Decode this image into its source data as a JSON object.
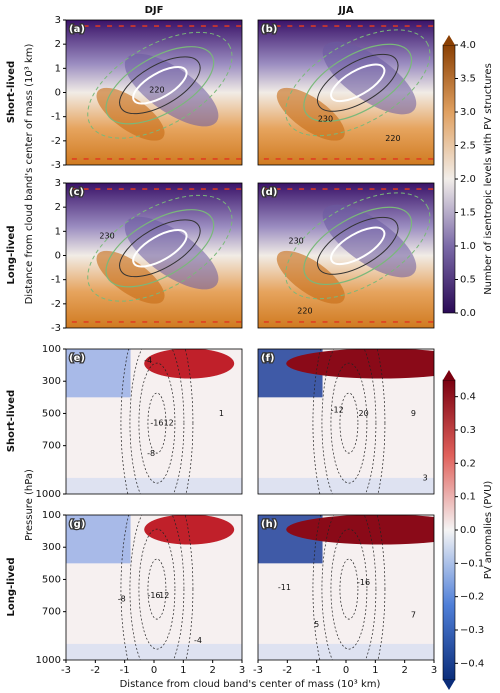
{
  "column_titles": [
    "DJF",
    "JJA"
  ],
  "row_labels": [
    "Short-lived",
    "Long-lived",
    "Short-lived",
    "Long-lived"
  ],
  "y_label_top": "Distance from cloud band's center of mass (10³ km)",
  "y_label_bottom": "Pressure (hPa)",
  "x_label": "Distance from cloud band's center of mass (10³ km)",
  "chart_data": [
    {
      "type": "heatmap",
      "cmap": "isentropic",
      "label": "(a)",
      "xlim": [
        -3,
        3
      ],
      "ylim": [
        -3,
        3
      ],
      "yticks": [
        3,
        2,
        1,
        0,
        -1,
        -2,
        -3
      ],
      "annotations": [
        {
          "text": "220",
          "x": 0.1,
          "y": 0.1
        }
      ]
    },
    {
      "type": "heatmap",
      "cmap": "isentropic",
      "label": "(b)",
      "xlim": [
        -3,
        3
      ],
      "ylim": [
        -3,
        3
      ],
      "annotations": [
        {
          "text": "230",
          "x": -0.7,
          "y": -1.1
        },
        {
          "text": "220",
          "x": 1.6,
          "y": -1.9
        }
      ]
    },
    {
      "type": "heatmap",
      "cmap": "isentropic",
      "label": "(c)",
      "xlim": [
        -3,
        3
      ],
      "ylim": [
        -3,
        3
      ],
      "yticks": [
        3,
        2,
        1,
        0,
        -1,
        -2,
        -3
      ],
      "annotations": [
        {
          "text": "230",
          "x": -1.6,
          "y": 0.8
        }
      ]
    },
    {
      "type": "heatmap",
      "cmap": "isentropic",
      "label": "(d)",
      "xlim": [
        -3,
        3
      ],
      "ylim": [
        -3,
        3
      ],
      "annotations": [
        {
          "text": "230",
          "x": -1.7,
          "y": 0.6
        },
        {
          "text": "220",
          "x": -1.4,
          "y": -2.3
        }
      ]
    },
    {
      "type": "heatmap",
      "cmap": "pv",
      "label": "(e)",
      "xlim": [
        -3,
        3
      ],
      "ylim": [
        1000,
        100
      ],
      "yticks": [
        100,
        300,
        500,
        700,
        1000
      ],
      "annotations": [
        {
          "text": "-4",
          "x": -0.2,
          "y": 170
        },
        {
          "text": "-16",
          "x": 0.1,
          "y": 560
        },
        {
          "text": "12",
          "x": 0.5,
          "y": 560
        },
        {
          "text": "-8",
          "x": -0.1,
          "y": 750
        },
        {
          "text": "1",
          "x": 2.3,
          "y": 500
        }
      ]
    },
    {
      "type": "heatmap",
      "cmap": "pv",
      "label": "(f)",
      "xlim": [
        -3,
        3
      ],
      "ylim": [
        1000,
        100
      ],
      "annotations": [
        {
          "text": "-12",
          "x": -0.3,
          "y": 480
        },
        {
          "text": "20",
          "x": 0.6,
          "y": 500
        },
        {
          "text": "9",
          "x": 2.3,
          "y": 500
        },
        {
          "text": "3",
          "x": 2.7,
          "y": 900
        }
      ]
    },
    {
      "type": "heatmap",
      "cmap": "pv",
      "label": "(g)",
      "xlim": [
        -3,
        3
      ],
      "ylim": [
        1000,
        100
      ],
      "yticks": [
        100,
        300,
        500,
        700,
        1000
      ],
      "xticks": [
        -3,
        -2,
        -1,
        0,
        1,
        2,
        3
      ],
      "annotations": [
        {
          "text": "-8",
          "x": -1.1,
          "y": 620
        },
        {
          "text": "-16",
          "x": 0.0,
          "y": 600
        },
        {
          "text": "12",
          "x": 0.35,
          "y": 600
        },
        {
          "text": "-4",
          "x": 1.5,
          "y": 880
        }
      ]
    },
    {
      "type": "heatmap",
      "cmap": "pv",
      "label": "(h)",
      "xlim": [
        -3,
        3
      ],
      "ylim": [
        1000,
        100
      ],
      "xticks": [
        -3,
        -2,
        -1,
        0,
        1,
        2,
        3
      ],
      "annotations": [
        {
          "text": "-11",
          "x": -2.1,
          "y": 550
        },
        {
          "text": "-16",
          "x": 0.6,
          "y": 520
        },
        {
          "text": "5",
          "x": -1.0,
          "y": 780
        },
        {
          "text": "7",
          "x": 2.3,
          "y": 720
        }
      ]
    },
    {
      "type": "colorbar",
      "label": "Number of isentropic levels with PV structures",
      "colors": [
        "#2a0a55",
        "#7b6aa8",
        "#f2eeea",
        "#e0a060",
        "#8a4004"
      ],
      "ylim": [
        0,
        4
      ],
      "yticks": [
        {
          "value": 0,
          "label": "0.0"
        },
        {
          "value": 0.5,
          "label": "0.5"
        },
        {
          "value": 1,
          "label": "1.0"
        },
        {
          "value": 1.5,
          "label": "1.5"
        },
        {
          "value": 2,
          "label": "2.0"
        },
        {
          "value": 2.5,
          "label": "2.5"
        },
        {
          "value": 3,
          "label": "3.0"
        },
        {
          "value": 3.5,
          "label": "3.5"
        },
        {
          "value": 4,
          "label": "4.0"
        }
      ]
    },
    {
      "type": "colorbar",
      "label": "PV anomalies (PVU)",
      "colors": [
        "#0b2d7a",
        "#4f7fd8",
        "#f5f5f5",
        "#e0605a",
        "#7a0010"
      ],
      "ylim": [
        -0.45,
        0.45
      ],
      "yticks": [
        {
          "value": -0.4,
          "label": "−0.4"
        },
        {
          "value": -0.3,
          "label": "−0.3"
        },
        {
          "value": -0.2,
          "label": "−0.2"
        },
        {
          "value": -0.1,
          "label": "−0.1"
        },
        {
          "value": 0,
          "label": "0.0"
        },
        {
          "value": 0.1,
          "label": "0.1"
        },
        {
          "value": 0.2,
          "label": "0.2"
        },
        {
          "value": 0.3,
          "label": "0.3"
        },
        {
          "value": 0.4,
          "label": "0.4"
        }
      ]
    }
  ]
}
